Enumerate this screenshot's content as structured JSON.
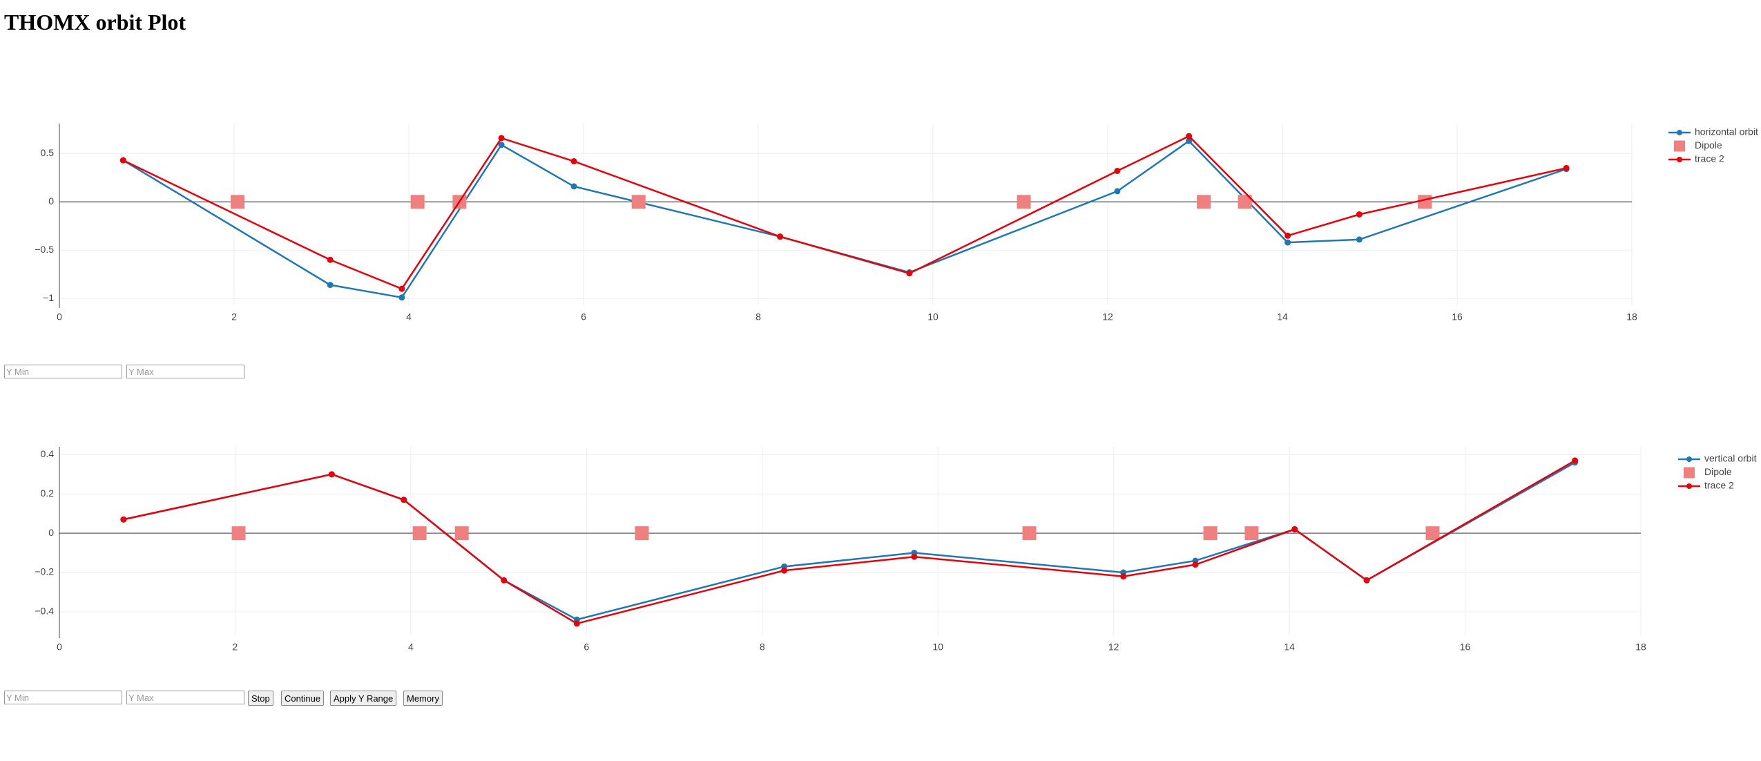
{
  "header": {
    "title": "THOMX orbit Plot"
  },
  "controls_1": {
    "inputs": [
      "Y Min",
      "Y Max"
    ]
  },
  "controls_2": {
    "inputs": [
      "Y Min",
      "Y Max"
    ],
    "buttons": [
      "Stop",
      "Continue",
      "Apply Y Range",
      "Memory"
    ]
  },
  "chart_data": [
    {
      "type": "line",
      "grid": true,
      "legend": "top-right",
      "xlim": [
        0,
        18
      ],
      "xticks": [
        0,
        2,
        4,
        6,
        8,
        10,
        12,
        14,
        16,
        18
      ],
      "ylim": [
        -1.07,
        0.81
      ],
      "yticks": [
        {
          "value": 0.5,
          "label": "0.5"
        },
        0,
        {
          "value": -0.5,
          "label": "−0.5"
        },
        {
          "value": -1,
          "label": "−1"
        }
      ],
      "series": [
        {
          "name": "horizontal orbit",
          "color": "#1f77b4",
          "mode": "lines+markers",
          "x": [
            0.73,
            3.1,
            3.92,
            5.06,
            5.89,
            8.25,
            9.73,
            12.11,
            12.93,
            14.06,
            14.88,
            17.25
          ],
          "values": [
            0.43,
            -0.86,
            -0.99,
            0.59,
            0.16,
            -0.36,
            -0.73,
            0.11,
            0.63,
            -0.42,
            -0.39,
            0.34
          ]
        },
        {
          "name": "Dipole",
          "color": "#f08080",
          "mode": "markers",
          "x": [
            2.04,
            4.1,
            4.58,
            6.63,
            11.04,
            13.1,
            13.57,
            15.63
          ],
          "values": [
            0,
            0,
            0,
            0,
            0,
            0,
            0,
            0
          ]
        },
        {
          "name": "trace 2",
          "color": "#e8000b",
          "mode": "lines+markers",
          "x": [
            0.73,
            3.1,
            3.92,
            5.06,
            5.89,
            8.25,
            9.73,
            12.11,
            12.93,
            14.06,
            14.88,
            17.25
          ],
          "values": [
            0.43,
            -0.6,
            -0.9,
            0.66,
            0.42,
            -0.36,
            -0.74,
            0.32,
            0.68,
            -0.35,
            -0.13,
            0.35
          ]
        }
      ]
    },
    {
      "type": "line",
      "grid": true,
      "legend": "top-right",
      "xlim": [
        0,
        18
      ],
      "xticks": [
        0,
        2,
        4,
        6,
        8,
        10,
        12,
        14,
        16,
        18
      ],
      "ylim": [
        -0.52,
        0.44
      ],
      "yticks": [
        {
          "value": 0.4,
          "label": "0.4"
        },
        {
          "value": 0.2,
          "label": "0.2"
        },
        0,
        {
          "value": -0.2,
          "label": "−0.2"
        },
        {
          "value": -0.4,
          "label": "−0.4"
        }
      ],
      "series": [
        {
          "name": "vertical orbit",
          "color": "#1f77b4",
          "mode": "lines+markers",
          "x": [
            0.73,
            3.1,
            3.92,
            5.06,
            5.89,
            8.25,
            9.73,
            12.11,
            12.93,
            14.06,
            14.88,
            17.25
          ],
          "values": [
            0.07,
            0.3,
            0.17,
            -0.24,
            -0.44,
            -0.17,
            -0.1,
            -0.2,
            -0.14,
            0.02,
            -0.24,
            0.36
          ]
        },
        {
          "name": "Dipole",
          "color": "#f08080",
          "mode": "markers",
          "x": [
            2.04,
            4.1,
            4.58,
            6.63,
            11.04,
            13.1,
            13.57,
            15.63
          ],
          "values": [
            0,
            0,
            0,
            0,
            0,
            0,
            0,
            0
          ]
        },
        {
          "name": "trace 2",
          "color": "#e8000b",
          "mode": "lines+markers",
          "x": [
            0.73,
            3.1,
            3.92,
            5.06,
            5.89,
            8.25,
            9.73,
            12.11,
            12.93,
            14.06,
            14.88,
            17.25
          ],
          "values": [
            0.07,
            0.3,
            0.17,
            -0.24,
            -0.46,
            -0.19,
            -0.12,
            -0.22,
            -0.16,
            0.02,
            -0.24,
            0.37
          ]
        }
      ]
    }
  ]
}
